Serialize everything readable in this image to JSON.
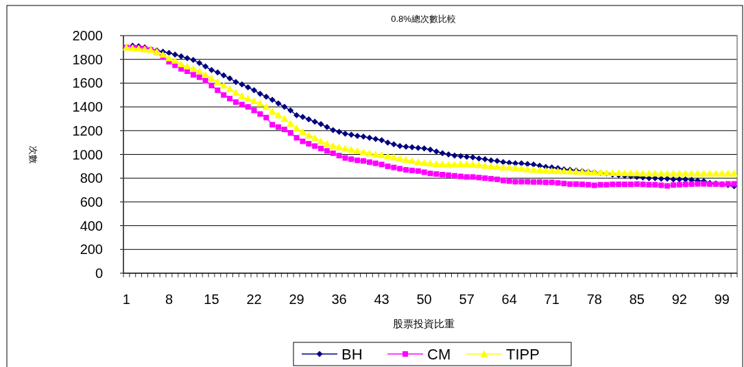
{
  "chart_data": {
    "type": "line",
    "title": "0.8%總次數比較",
    "xlabel": "股票投資比重",
    "ylabel": "次數",
    "categories": [
      "1",
      null,
      null,
      null,
      null,
      null,
      null,
      "8",
      null,
      null,
      null,
      null,
      null,
      null,
      "15",
      null,
      null,
      null,
      null,
      null,
      null,
      "22",
      null,
      null,
      null,
      null,
      null,
      null,
      "29",
      null,
      null,
      null,
      null,
      null,
      null,
      "36",
      null,
      null,
      null,
      null,
      null,
      null,
      "43",
      null,
      null,
      null,
      null,
      null,
      null,
      "50",
      null,
      null,
      null,
      null,
      null,
      null,
      "57",
      null,
      null,
      null,
      null,
      null,
      null,
      "64",
      null,
      null,
      null,
      null,
      null,
      null,
      "71",
      null,
      null,
      null,
      null,
      null,
      null,
      "78",
      null,
      null,
      null,
      null,
      null,
      null,
      "85",
      null,
      null,
      null,
      null,
      null,
      null,
      "92",
      null,
      null,
      null,
      null,
      null,
      null,
      "99",
      null,
      null
    ],
    "ylim": [
      0,
      2000
    ],
    "yticks": [
      0,
      200,
      400,
      600,
      800,
      1000,
      1200,
      1400,
      1600,
      1800,
      2000
    ],
    "grid": "y",
    "legend": "bottom",
    "series": [
      {
        "name": "BH",
        "color": "#000080",
        "marker": "diamond",
        "values": [
          null,
          1915,
          1910,
          1900,
          1885,
          1875,
          1865,
          1855,
          1840,
          1825,
          1810,
          1795,
          1770,
          1740,
          1710,
          1690,
          1665,
          1640,
          1610,
          1590,
          1565,
          1540,
          1510,
          1485,
          1460,
          1430,
          1400,
          1370,
          1330,
          1315,
          1295,
          1275,
          1255,
          1230,
          1205,
          1190,
          1175,
          1165,
          1155,
          1150,
          1140,
          1130,
          1120,
          1100,
          1085,
          1070,
          1065,
          1060,
          1055,
          1050,
          1040,
          1025,
          1010,
          1000,
          990,
          985,
          980,
          975,
          965,
          960,
          950,
          945,
          935,
          930,
          925,
          925,
          920,
          915,
          905,
          895,
          890,
          885,
          875,
          870,
          865,
          860,
          855,
          850,
          845,
          840,
          830,
          825,
          820,
          815,
          810,
          805,
          800,
          800,
          795,
          795,
          790,
          790,
          790,
          785,
          780,
          775,
          760,
          755,
          750,
          742,
          732
        ]
      },
      {
        "name": "CM",
        "color": "#ff00ff",
        "marker": "square",
        "values": [
          1900,
          1900,
          1895,
          1890,
          1880,
          1860,
          1820,
          1780,
          1750,
          1720,
          1700,
          1670,
          1650,
          1620,
          1580,
          1540,
          1500,
          1470,
          1440,
          1420,
          1400,
          1370,
          1340,
          1310,
          1250,
          1230,
          1210,
          1180,
          1140,
          1110,
          1090,
          1070,
          1050,
          1030,
          1010,
          990,
          970,
          960,
          950,
          945,
          935,
          925,
          915,
          900,
          890,
          880,
          870,
          865,
          860,
          850,
          840,
          835,
          830,
          825,
          820,
          815,
          810,
          810,
          805,
          800,
          795,
          790,
          780,
          775,
          770,
          770,
          770,
          768,
          768,
          765,
          765,
          760,
          755,
          750,
          750,
          748,
          745,
          740,
          745,
          745,
          748,
          748,
          748,
          748,
          750,
          748,
          745,
          745,
          740,
          735,
          742,
          745,
          748,
          750,
          752,
          752,
          750,
          750,
          748,
          752,
          752
        ]
      },
      {
        "name": "TIPP",
        "color": "#ffff00",
        "marker": "triangle",
        "values": [
          1900,
          1895,
          1890,
          1885,
          1880,
          1865,
          1840,
          1810,
          1790,
          1760,
          1740,
          1720,
          1700,
          1670,
          1640,
          1610,
          1580,
          1550,
          1520,
          1490,
          1470,
          1450,
          1430,
          1400,
          1360,
          1330,
          1300,
          1260,
          1220,
          1190,
          1160,
          1140,
          1110,
          1090,
          1070,
          1060,
          1050,
          1040,
          1030,
          1020,
          1010,
          1000,
          995,
          985,
          975,
          965,
          955,
          945,
          935,
          930,
          925,
          920,
          920,
          915,
          915,
          920,
          920,
          915,
          910,
          905,
          900,
          895,
          890,
          890,
          885,
          880,
          875,
          870,
          868,
          865,
          862,
          860,
          860,
          858,
          856,
          854,
          852,
          850,
          848,
          846,
          845,
          844,
          843,
          842,
          841,
          840,
          840,
          840,
          840,
          840,
          840,
          840,
          840,
          840,
          840,
          840,
          840,
          840,
          840,
          840,
          840
        ]
      }
    ]
  }
}
